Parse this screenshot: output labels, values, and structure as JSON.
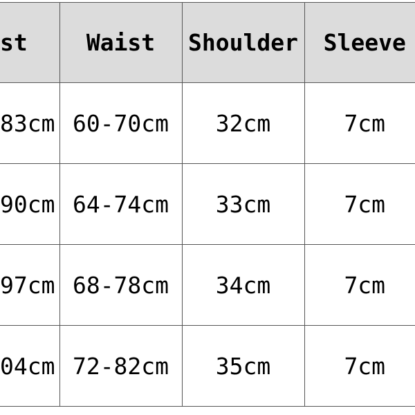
{
  "header": [
    "st",
    "Waist",
    "Shoulder",
    "Sleeve"
  ],
  "rows": [
    [
      "83cm",
      "60-70cm",
      "32cm",
      "7cm"
    ],
    [
      "90cm",
      "64-74cm",
      "33cm",
      "7cm"
    ],
    [
      "97cm",
      "68-78cm",
      "34cm",
      "7cm"
    ],
    [
      "04cm",
      "72-82cm",
      "35cm",
      "7cm"
    ]
  ],
  "colors": {
    "header_bg": "#dcdcdc",
    "border": "#555555"
  }
}
